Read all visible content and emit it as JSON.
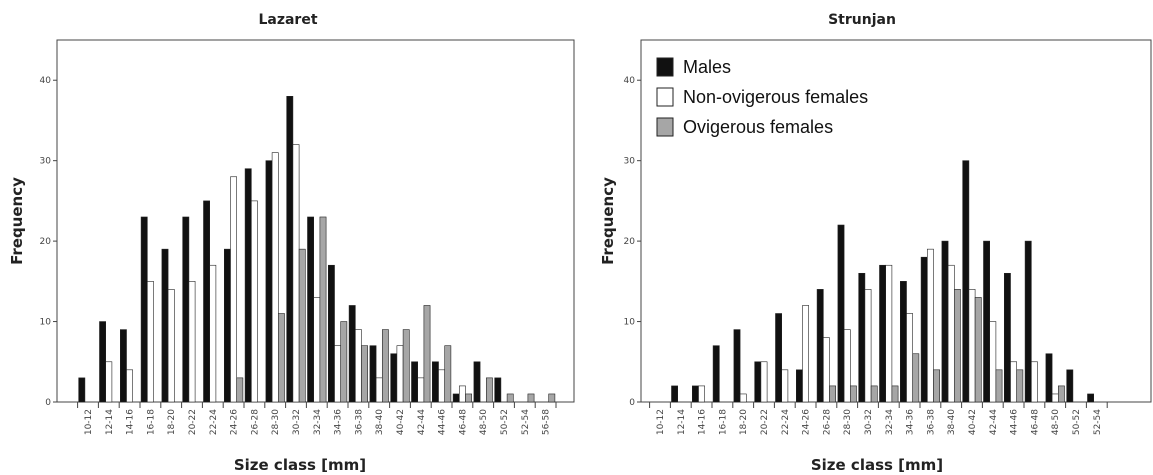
{
  "chart_data": [
    {
      "type": "bar",
      "title": "Lazaret",
      "xlabel": "Size class [mm]",
      "ylabel": "Frequency",
      "ylim": [
        0,
        45
      ],
      "yticks": [
        0,
        10,
        20,
        30,
        40
      ],
      "grid": false,
      "legend": false,
      "categories": [
        "10-12",
        "12-14",
        "14-16",
        "16-18",
        "18-20",
        "20-22",
        "22-24",
        "24-26",
        "26-28",
        "28-30",
        "30-32",
        "32-34",
        "34-36",
        "36-38",
        "38-40",
        "40-42",
        "42-44",
        "44-46",
        "46-48",
        "48-50",
        "50-52",
        "52-54",
        "56-58"
      ],
      "series": [
        {
          "name": "Males",
          "color": "#111111",
          "values": [
            3,
            10,
            9,
            23,
            19,
            23,
            25,
            19,
            29,
            30,
            38,
            23,
            17,
            12,
            7,
            6,
            5,
            5,
            1,
            5,
            3,
            0,
            0
          ]
        },
        {
          "name": "Non-ovigerous females",
          "color": "#ffffff",
          "values": [
            0,
            5,
            4,
            15,
            14,
            15,
            17,
            28,
            25,
            31,
            32,
            13,
            7,
            9,
            3,
            7,
            3,
            4,
            2,
            0,
            0,
            0,
            0
          ]
        },
        {
          "name": "Ovigerous females",
          "color": "#a6a6a6",
          "values": [
            0,
            0,
            0,
            0,
            0,
            0,
            0,
            3,
            0,
            11,
            19,
            23,
            10,
            7,
            9,
            9,
            12,
            7,
            1,
            3,
            1,
            1,
            1
          ]
        }
      ]
    },
    {
      "type": "bar",
      "title": "Strunjan",
      "xlabel": "Size class [mm]",
      "ylabel": "Frequency",
      "ylim": [
        0,
        45
      ],
      "yticks": [
        0,
        10,
        20,
        30,
        40
      ],
      "grid": false,
      "legend": "top-left",
      "categories": [
        "10-12",
        "12-14",
        "14-16",
        "16-18",
        "18-20",
        "20-22",
        "22-24",
        "24-26",
        "26-28",
        "28-30",
        "30-32",
        "32-34",
        "34-36",
        "36-38",
        "38-40",
        "40-42",
        "42-44",
        "44-46",
        "46-48",
        "48-50",
        "50-52",
        "52-54"
      ],
      "series": [
        {
          "name": "Males",
          "color": "#111111",
          "values": [
            0,
            2,
            2,
            7,
            9,
            5,
            11,
            4,
            14,
            22,
            16,
            17,
            15,
            18,
            20,
            30,
            20,
            16,
            20,
            6,
            4,
            1
          ]
        },
        {
          "name": "Non-ovigerous females",
          "color": "#ffffff",
          "values": [
            0,
            0,
            2,
            0,
            1,
            5,
            4,
            12,
            8,
            9,
            14,
            17,
            11,
            19,
            17,
            14,
            10,
            5,
            5,
            1,
            0,
            0
          ]
        },
        {
          "name": "Ovigerous females",
          "color": "#a6a6a6",
          "values": [
            0,
            0,
            0,
            0,
            0,
            0,
            0,
            0,
            2,
            2,
            2,
            2,
            6,
            4,
            14,
            13,
            4,
            4,
            0,
            2,
            0,
            0
          ]
        }
      ]
    }
  ]
}
